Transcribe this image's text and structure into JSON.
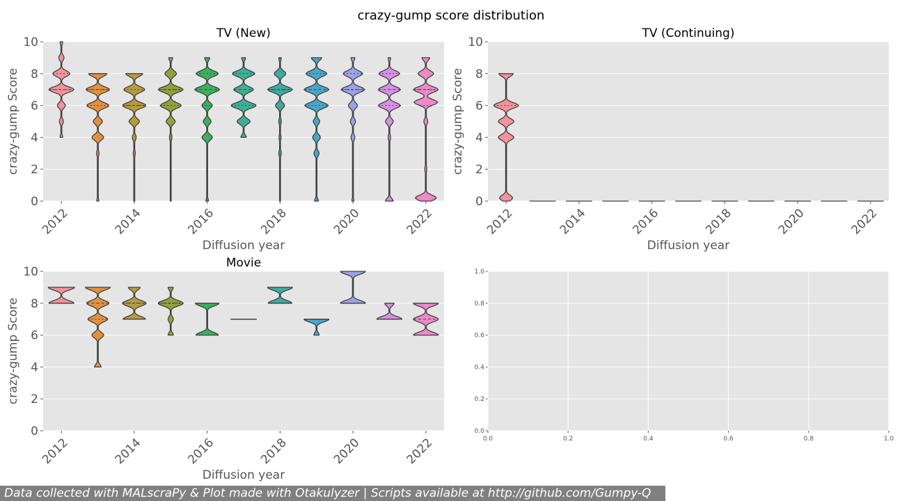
{
  "figure_title": "crazy-gump score distribution",
  "footer": "Data collected with MALscraPy & Plot made with Otakulyzer | Scripts available at http://github.com/Gumpy-Q",
  "colors": {
    "panel_bg": "#e5e5e5",
    "grid": "#ffffff",
    "outline": "#404040",
    "years": [
      "#f2929a",
      "#e39140",
      "#b79b3e",
      "#91a23c",
      "#3bb15d",
      "#3eaf96",
      "#3eab9f",
      "#4aa6c8",
      "#9aa3e9",
      "#d78fe8",
      "#ec8bc5"
    ]
  },
  "chart_data": [
    {
      "type": "violin",
      "title": "TV (New)",
      "xlabel": "Diffusion year",
      "ylabel": "crazy-gump Score",
      "ylim": [
        0,
        10
      ],
      "yticks": [
        "0",
        "2",
        "4",
        "6",
        "8",
        "10"
      ],
      "xticks": [
        "2012",
        "2014",
        "2016",
        "2018",
        "2020",
        "2022"
      ],
      "categories": [
        "2012",
        "2013",
        "2014",
        "2015",
        "2016",
        "2017",
        "2018",
        "2019",
        "2020",
        "2021",
        "2022"
      ],
      "violins": [
        {
          "year": "2012",
          "score_min": 4,
          "score_max": 10,
          "modes": [
            [
              7,
              0.95
            ],
            [
              8,
              0.65
            ],
            [
              6,
              0.3
            ],
            [
              9,
              0.2
            ],
            [
              5,
              0.15
            ],
            [
              10,
              0.1
            ],
            [
              4,
              0.1
            ]
          ],
          "quartiles": [
            7,
            7,
            8
          ]
        },
        {
          "year": "2013",
          "score_min": 0,
          "score_max": 8,
          "modes": [
            [
              7,
              0.9
            ],
            [
              6,
              0.85
            ],
            [
              8,
              0.7
            ],
            [
              5,
              0.35
            ],
            [
              4,
              0.45
            ],
            [
              3,
              0.1
            ],
            [
              0,
              0.08
            ]
          ],
          "quartiles": [
            6,
            7,
            7
          ]
        },
        {
          "year": "2014",
          "score_min": 0,
          "score_max": 8,
          "modes": [
            [
              6,
              0.9
            ],
            [
              7,
              0.8
            ],
            [
              8,
              0.65
            ],
            [
              5,
              0.4
            ],
            [
              4,
              0.15
            ],
            [
              3,
              0.08
            ]
          ],
          "quartiles": [
            6,
            6,
            7
          ]
        },
        {
          "year": "2015",
          "score_min": 0,
          "score_max": 9,
          "modes": [
            [
              7,
              0.95
            ],
            [
              6,
              0.8
            ],
            [
              8,
              0.45
            ],
            [
              5,
              0.35
            ],
            [
              9,
              0.15
            ],
            [
              4,
              0.1
            ]
          ],
          "quartiles": [
            6,
            7,
            7
          ]
        },
        {
          "year": "2016",
          "score_min": 0,
          "score_max": 9,
          "modes": [
            [
              7,
              0.95
            ],
            [
              8,
              0.85
            ],
            [
              6,
              0.4
            ],
            [
              5,
              0.3
            ],
            [
              4,
              0.4
            ],
            [
              9,
              0.2
            ],
            [
              0,
              0.1
            ]
          ],
          "quartiles": [
            6,
            7,
            8
          ]
        },
        {
          "year": "2017",
          "score_min": 4,
          "score_max": 9,
          "modes": [
            [
              8,
              0.85
            ],
            [
              7,
              0.75
            ],
            [
              6,
              0.95
            ],
            [
              5,
              0.5
            ],
            [
              9,
              0.15
            ],
            [
              4,
              0.2
            ]
          ],
          "quartiles": [
            6,
            7,
            8
          ]
        },
        {
          "year": "2018",
          "score_min": 0,
          "score_max": 9,
          "modes": [
            [
              7,
              0.95
            ],
            [
              8,
              0.45
            ],
            [
              6,
              0.35
            ],
            [
              5,
              0.1
            ],
            [
              4,
              0.08
            ],
            [
              3,
              0.1
            ],
            [
              9,
              0.1
            ]
          ],
          "quartiles": [
            7,
            7,
            7
          ]
        },
        {
          "year": "2019",
          "score_min": 0,
          "score_max": 9,
          "modes": [
            [
              7,
              0.95
            ],
            [
              6,
              0.9
            ],
            [
              8,
              0.8
            ],
            [
              9,
              0.4
            ],
            [
              5,
              0.25
            ],
            [
              4,
              0.3
            ],
            [
              3,
              0.2
            ],
            [
              0,
              0.15
            ]
          ],
          "quartiles": [
            6,
            7,
            8
          ]
        },
        {
          "year": "2020",
          "score_min": 0,
          "score_max": 9,
          "modes": [
            [
              7,
              0.9
            ],
            [
              8,
              0.75
            ],
            [
              6,
              0.35
            ],
            [
              5,
              0.2
            ],
            [
              9,
              0.15
            ],
            [
              4,
              0.15
            ],
            [
              0,
              0.08
            ]
          ],
          "quartiles": [
            7,
            7,
            8
          ]
        },
        {
          "year": "2021",
          "score_min": 0,
          "score_max": 9,
          "modes": [
            [
              7,
              0.85
            ],
            [
              6,
              0.85
            ],
            [
              8,
              0.8
            ],
            [
              5,
              0.3
            ],
            [
              9,
              0.1
            ],
            [
              4,
              0.1
            ],
            [
              0,
              0.3
            ]
          ],
          "quartiles": [
            6,
            7,
            8
          ]
        },
        {
          "year": "2022",
          "score_min": 0,
          "score_max": 9,
          "modes": [
            [
              7,
              0.95
            ],
            [
              6.2,
              0.9
            ],
            [
              8,
              0.6
            ],
            [
              9,
              0.3
            ],
            [
              5,
              0.15
            ],
            [
              2,
              0.08
            ],
            [
              0.2,
              0.8
            ]
          ],
          "quartiles": [
            6,
            7,
            7
          ]
        }
      ]
    },
    {
      "type": "violin",
      "title": "TV (Continuing)",
      "xlabel": "Diffusion year",
      "ylabel": "crazy-gump Score",
      "ylim": [
        0,
        10
      ],
      "yticks": [
        "0",
        "2",
        "4",
        "6",
        "8",
        "10"
      ],
      "xticks": [
        "2012",
        "2014",
        "2016",
        "2018",
        "2020",
        "2022"
      ],
      "categories": [
        "2012",
        "2013",
        "2014",
        "2015",
        "2016",
        "2017",
        "2018",
        "2019",
        "2020",
        "2021",
        "2022"
      ],
      "violins": [
        {
          "year": "2012",
          "score_min": 0,
          "score_max": 8,
          "modes": [
            [
              6,
              0.95
            ],
            [
              5,
              0.6
            ],
            [
              4,
              0.6
            ],
            [
              8,
              0.55
            ],
            [
              0.2,
              0.5
            ]
          ],
          "quartiles": [
            4.5,
            5.5,
            6
          ]
        },
        {
          "year": "2013",
          "empty": true
        },
        {
          "year": "2014",
          "empty": true
        },
        {
          "year": "2015",
          "empty": true
        },
        {
          "year": "2016",
          "empty": true
        },
        {
          "year": "2017",
          "empty": true
        },
        {
          "year": "2018",
          "empty": true
        },
        {
          "year": "2019",
          "empty": true
        },
        {
          "year": "2020",
          "empty": true
        },
        {
          "year": "2021",
          "empty": true
        },
        {
          "year": "2022",
          "empty": true
        }
      ]
    },
    {
      "type": "violin",
      "title": "Movie",
      "xlabel": "Diffusion year",
      "ylabel": "crazy-gump Score",
      "ylim": [
        0,
        10
      ],
      "yticks": [
        "0",
        "2",
        "4",
        "6",
        "8",
        "10"
      ],
      "xticks": [
        "2012",
        "2014",
        "2016",
        "2018",
        "2020",
        "2022"
      ],
      "categories": [
        "2012",
        "2013",
        "2014",
        "2015",
        "2016",
        "2017",
        "2018",
        "2019",
        "2020",
        "2021",
        "2022"
      ],
      "violins": [
        {
          "year": "2012",
          "score_min": 8,
          "score_max": 9,
          "modes": [
            [
              9,
              1.0
            ],
            [
              8,
              0.95
            ]
          ],
          "quartiles": [
            8,
            8.5,
            9
          ]
        },
        {
          "year": "2013",
          "score_min": 4,
          "score_max": 9,
          "modes": [
            [
              9,
              0.95
            ],
            [
              8,
              0.85
            ],
            [
              7,
              0.75
            ],
            [
              6,
              0.45
            ],
            [
              4,
              0.25
            ]
          ],
          "quartiles": [
            7,
            8,
            9
          ]
        },
        {
          "year": "2014",
          "score_min": 7,
          "score_max": 9,
          "modes": [
            [
              8,
              0.9
            ],
            [
              7,
              0.85
            ],
            [
              9,
              0.45
            ]
          ],
          "quartiles": [
            7.5,
            8,
            8
          ]
        },
        {
          "year": "2015",
          "score_min": 6,
          "score_max": 9,
          "modes": [
            [
              8,
              0.95
            ],
            [
              7,
              0.2
            ],
            [
              9,
              0.2
            ],
            [
              6,
              0.2
            ]
          ],
          "quartiles": [
            8,
            8,
            8
          ]
        },
        {
          "year": "2016",
          "score_min": 6,
          "score_max": 8,
          "modes": [
            [
              8,
              0.9
            ],
            [
              6,
              0.85
            ]
          ],
          "quartiles": [
            6,
            7,
            8
          ]
        },
        {
          "year": "2017",
          "single": 7
        },
        {
          "year": "2018",
          "score_min": 8,
          "score_max": 9,
          "modes": [
            [
              9,
              0.95
            ],
            [
              8,
              0.9
            ]
          ],
          "quartiles": [
            8,
            8.5,
            9
          ]
        },
        {
          "year": "2019",
          "score_min": 6,
          "score_max": 7,
          "modes": [
            [
              7,
              0.95
            ],
            [
              6,
              0.2
            ]
          ],
          "quartiles": [
            7,
            7,
            7
          ]
        },
        {
          "year": "2020",
          "score_min": 8,
          "score_max": 10,
          "modes": [
            [
              10,
              0.95
            ],
            [
              8,
              0.95
            ]
          ],
          "quartiles": [
            8,
            9,
            10
          ]
        },
        {
          "year": "2021",
          "score_min": 7,
          "score_max": 8,
          "modes": [
            [
              7,
              0.95
            ],
            [
              8,
              0.35
            ]
          ],
          "quartiles": [
            7,
            7,
            7.5
          ]
        },
        {
          "year": "2022",
          "score_min": 6,
          "score_max": 8,
          "modes": [
            [
              8,
              0.95
            ],
            [
              7,
              0.95
            ],
            [
              6,
              0.95
            ]
          ],
          "quartiles": [
            6.5,
            7,
            7.5
          ]
        }
      ]
    },
    {
      "type": "empty",
      "xlim": [
        0,
        1
      ],
      "ylim": [
        0,
        1
      ],
      "xticks": [
        "0.0",
        "0.2",
        "0.4",
        "0.6",
        "0.8",
        "1.0"
      ],
      "yticks": [
        "0.0",
        "0.2",
        "0.4",
        "0.6",
        "0.8",
        "1.0"
      ]
    }
  ]
}
